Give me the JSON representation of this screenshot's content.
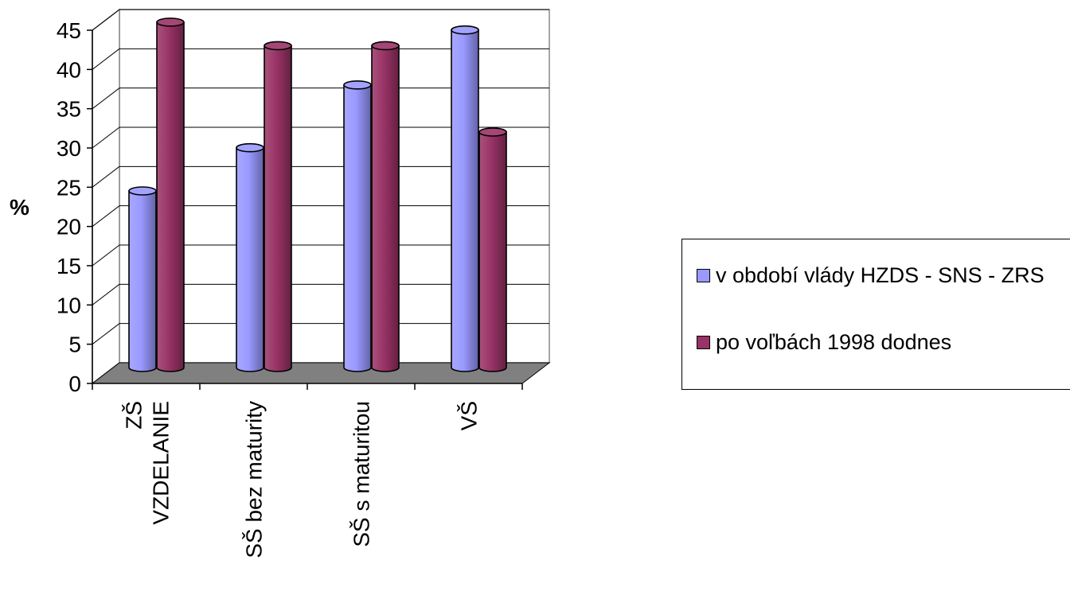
{
  "chart_data": {
    "type": "bar",
    "categories": [
      "ZŠ VZDELANIE",
      "SŠ bez maturity",
      "SŠ s maturitou",
      "VŠ"
    ],
    "series": [
      {
        "name": "v období vlády HZDS - SNS - ZRS",
        "values": [
          22.5,
          28,
          36,
          43
        ],
        "color": "#9999ff"
      },
      {
        "name": "po voľbách 1998 dodnes",
        "values": [
          44,
          41,
          41,
          30
        ],
        "color": "#993366"
      }
    ],
    "ylabel": "%",
    "ylim": [
      0,
      45
    ],
    "yticks": [
      "0",
      "5",
      "10",
      "15",
      "20",
      "25",
      "30",
      "35",
      "40",
      "45"
    ],
    "grid": true,
    "legend_position": "right"
  }
}
